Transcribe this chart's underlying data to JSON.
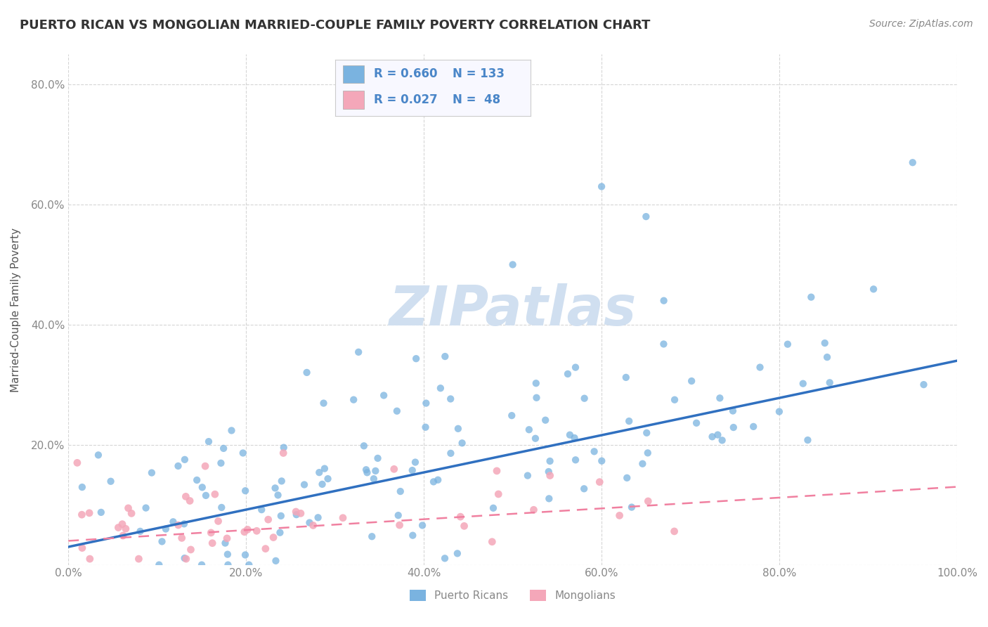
{
  "title": "PUERTO RICAN VS MONGOLIAN MARRIED-COUPLE FAMILY POVERTY CORRELATION CHART",
  "source": "Source: ZipAtlas.com",
  "ylabel": "Married-Couple Family Poverty",
  "xlim": [
    0.0,
    1.0
  ],
  "ylim": [
    0.0,
    0.85
  ],
  "xticks": [
    0.0,
    0.2,
    0.4,
    0.6,
    0.8,
    1.0
  ],
  "xticklabels": [
    "0.0%",
    "20.0%",
    "40.0%",
    "60.0%",
    "80.0%",
    "100.0%"
  ],
  "yticks": [
    0.0,
    0.2,
    0.4,
    0.6,
    0.8
  ],
  "yticklabels": [
    "",
    "20.0%",
    "40.0%",
    "60.0%",
    "80.0%"
  ],
  "pr_color": "#7ab3e0",
  "mongolian_color": "#f4a7b9",
  "pr_R": 0.66,
  "pr_N": 133,
  "mongolian_R": 0.027,
  "mongolian_N": 48,
  "pr_line_start": 0.03,
  "pr_line_end": 0.34,
  "mn_line_start": 0.04,
  "mn_line_end": 0.13,
  "background_color": "#ffffff",
  "watermark_color": "#d0dff0",
  "legend_text_color": "#4a86c8",
  "title_color": "#333333",
  "source_color": "#888888",
  "tick_color": "#888888",
  "grid_color": "#cccccc",
  "pr_line_color": "#3070c0",
  "mn_line_color": "#f080a0"
}
